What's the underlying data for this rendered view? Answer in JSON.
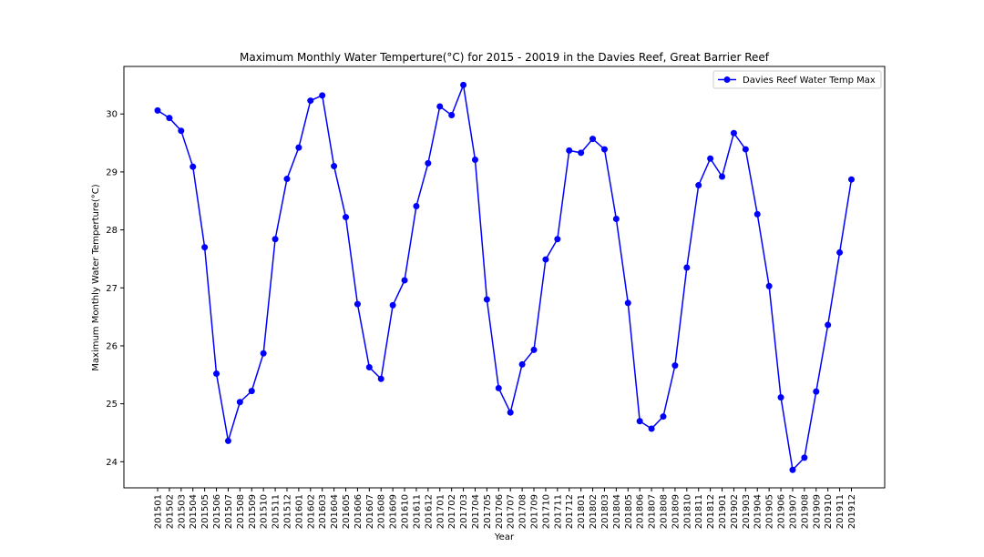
{
  "chart_data": {
    "type": "line",
    "title": "Maximum Monthly Water Temperture(°C) for 2015 - 20019 in the Davies Reef, Great Barrier Reef",
    "xlabel": "Year",
    "ylabel": "Maximum Monthly Water Temperture(°C)",
    "ylim": [
      23.55,
      30.82
    ],
    "yticks": [
      24,
      25,
      26,
      27,
      28,
      29,
      30
    ],
    "grid": false,
    "legend_position": "top-right",
    "categories": [
      "201501",
      "201502",
      "201503",
      "201504",
      "201505",
      "201506",
      "201507",
      "201508",
      "201509",
      "201510",
      "201511",
      "201512",
      "201601",
      "201602",
      "201603",
      "201604",
      "201605",
      "201606",
      "201607",
      "201608",
      "201609",
      "201610",
      "201611",
      "201612",
      "201701",
      "201702",
      "201703",
      "201704",
      "201705",
      "201706",
      "201707",
      "201708",
      "201709",
      "201710",
      "201711",
      "201712",
      "201801",
      "201802",
      "201803",
      "201804",
      "201805",
      "201806",
      "201807",
      "201808",
      "201809",
      "201810",
      "201811",
      "201812",
      "201901",
      "201902",
      "201903",
      "201904",
      "201905",
      "201906",
      "201907",
      "201908",
      "201909",
      "201910",
      "201911",
      "201912"
    ],
    "series": [
      {
        "name": "Davies Reef Water Temp Max",
        "color": "#0000ff",
        "marker": "circle",
        "values": [
          30.06,
          29.93,
          29.71,
          29.09,
          27.7,
          25.52,
          24.36,
          25.03,
          25.22,
          25.87,
          27.84,
          28.88,
          29.42,
          30.23,
          30.32,
          29.1,
          28.22,
          26.72,
          25.63,
          25.43,
          26.7,
          27.13,
          28.41,
          29.15,
          30.13,
          29.98,
          30.5,
          29.21,
          26.8,
          25.27,
          24.85,
          25.68,
          25.93,
          27.49,
          27.84,
          29.37,
          29.33,
          29.57,
          29.39,
          28.19,
          26.74,
          24.7,
          24.57,
          24.78,
          25.66,
          27.35,
          28.77,
          29.23,
          28.92,
          29.67,
          29.39,
          28.27,
          27.03,
          25.11,
          23.86,
          24.07,
          25.21,
          26.36,
          27.61,
          28.87
        ]
      }
    ]
  }
}
